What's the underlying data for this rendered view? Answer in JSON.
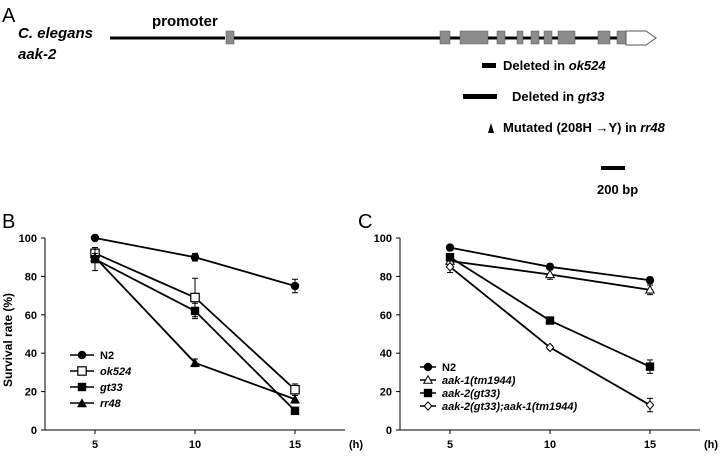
{
  "panel_a": {
    "label": "A",
    "species": "C. elegans",
    "gene": "aak-2",
    "promoter_label": "promoter",
    "annotations": [
      {
        "prefix": "Deleted in ",
        "allele": "ok524"
      },
      {
        "prefix": "Deleted in ",
        "allele": "gt33"
      },
      {
        "prefix": "Mutated (208H →Y) in ",
        "allele": "rr48"
      }
    ],
    "scale_label": "200 bp"
  },
  "chart_data": [
    {
      "panel": "B",
      "type": "line",
      "ylabel": "Survival rate (%)",
      "xunit": "(h)",
      "x": [
        5,
        10,
        15
      ],
      "yticks": [
        0,
        20,
        40,
        60,
        80,
        100
      ],
      "ylim": [
        0,
        100
      ],
      "series": [
        {
          "name": "N2",
          "marker": "circle-filled",
          "values": [
            100,
            90,
            75
          ],
          "err": [
            0,
            2,
            3.5
          ],
          "italic": false
        },
        {
          "name": "ok524",
          "marker": "square-open",
          "values": [
            92,
            69,
            21
          ],
          "err": [
            3,
            10,
            3
          ],
          "italic": true
        },
        {
          "name": "gt33",
          "marker": "square-filled",
          "values": [
            89,
            62,
            10
          ],
          "err": [
            6,
            4,
            1
          ],
          "italic": true
        },
        {
          "name": "rr48",
          "marker": "triangle-filled",
          "values": [
            90,
            35,
            16
          ],
          "err": [
            2,
            2,
            2
          ],
          "italic": true
        }
      ]
    },
    {
      "panel": "C",
      "type": "line",
      "ylabel": "",
      "xunit": "(h)",
      "x": [
        5,
        10,
        15
      ],
      "yticks": [
        0,
        20,
        40,
        60,
        80,
        100
      ],
      "ylim": [
        0,
        100
      ],
      "series": [
        {
          "name": "N2",
          "marker": "circle-filled",
          "values": [
            95,
            85,
            78
          ],
          "err": [
            1,
            1.5,
            1.5
          ],
          "italic": false
        },
        {
          "name": "aak-1(tm1944)",
          "marker": "triangle-open",
          "values": [
            88,
            81,
            73
          ],
          "err": [
            1.5,
            2.5,
            2.5
          ],
          "italic": true
        },
        {
          "name": "aak-2(gt33)",
          "marker": "square-filled",
          "values": [
            90,
            57,
            33
          ],
          "err": [
            1,
            1.5,
            3.5
          ],
          "italic": true
        },
        {
          "name": "aak-2(gt33);aak-1(tm1944)",
          "marker": "diamond-open",
          "values": [
            85,
            43,
            13
          ],
          "err": [
            3,
            1,
            3.5
          ],
          "italic": true
        }
      ]
    }
  ]
}
